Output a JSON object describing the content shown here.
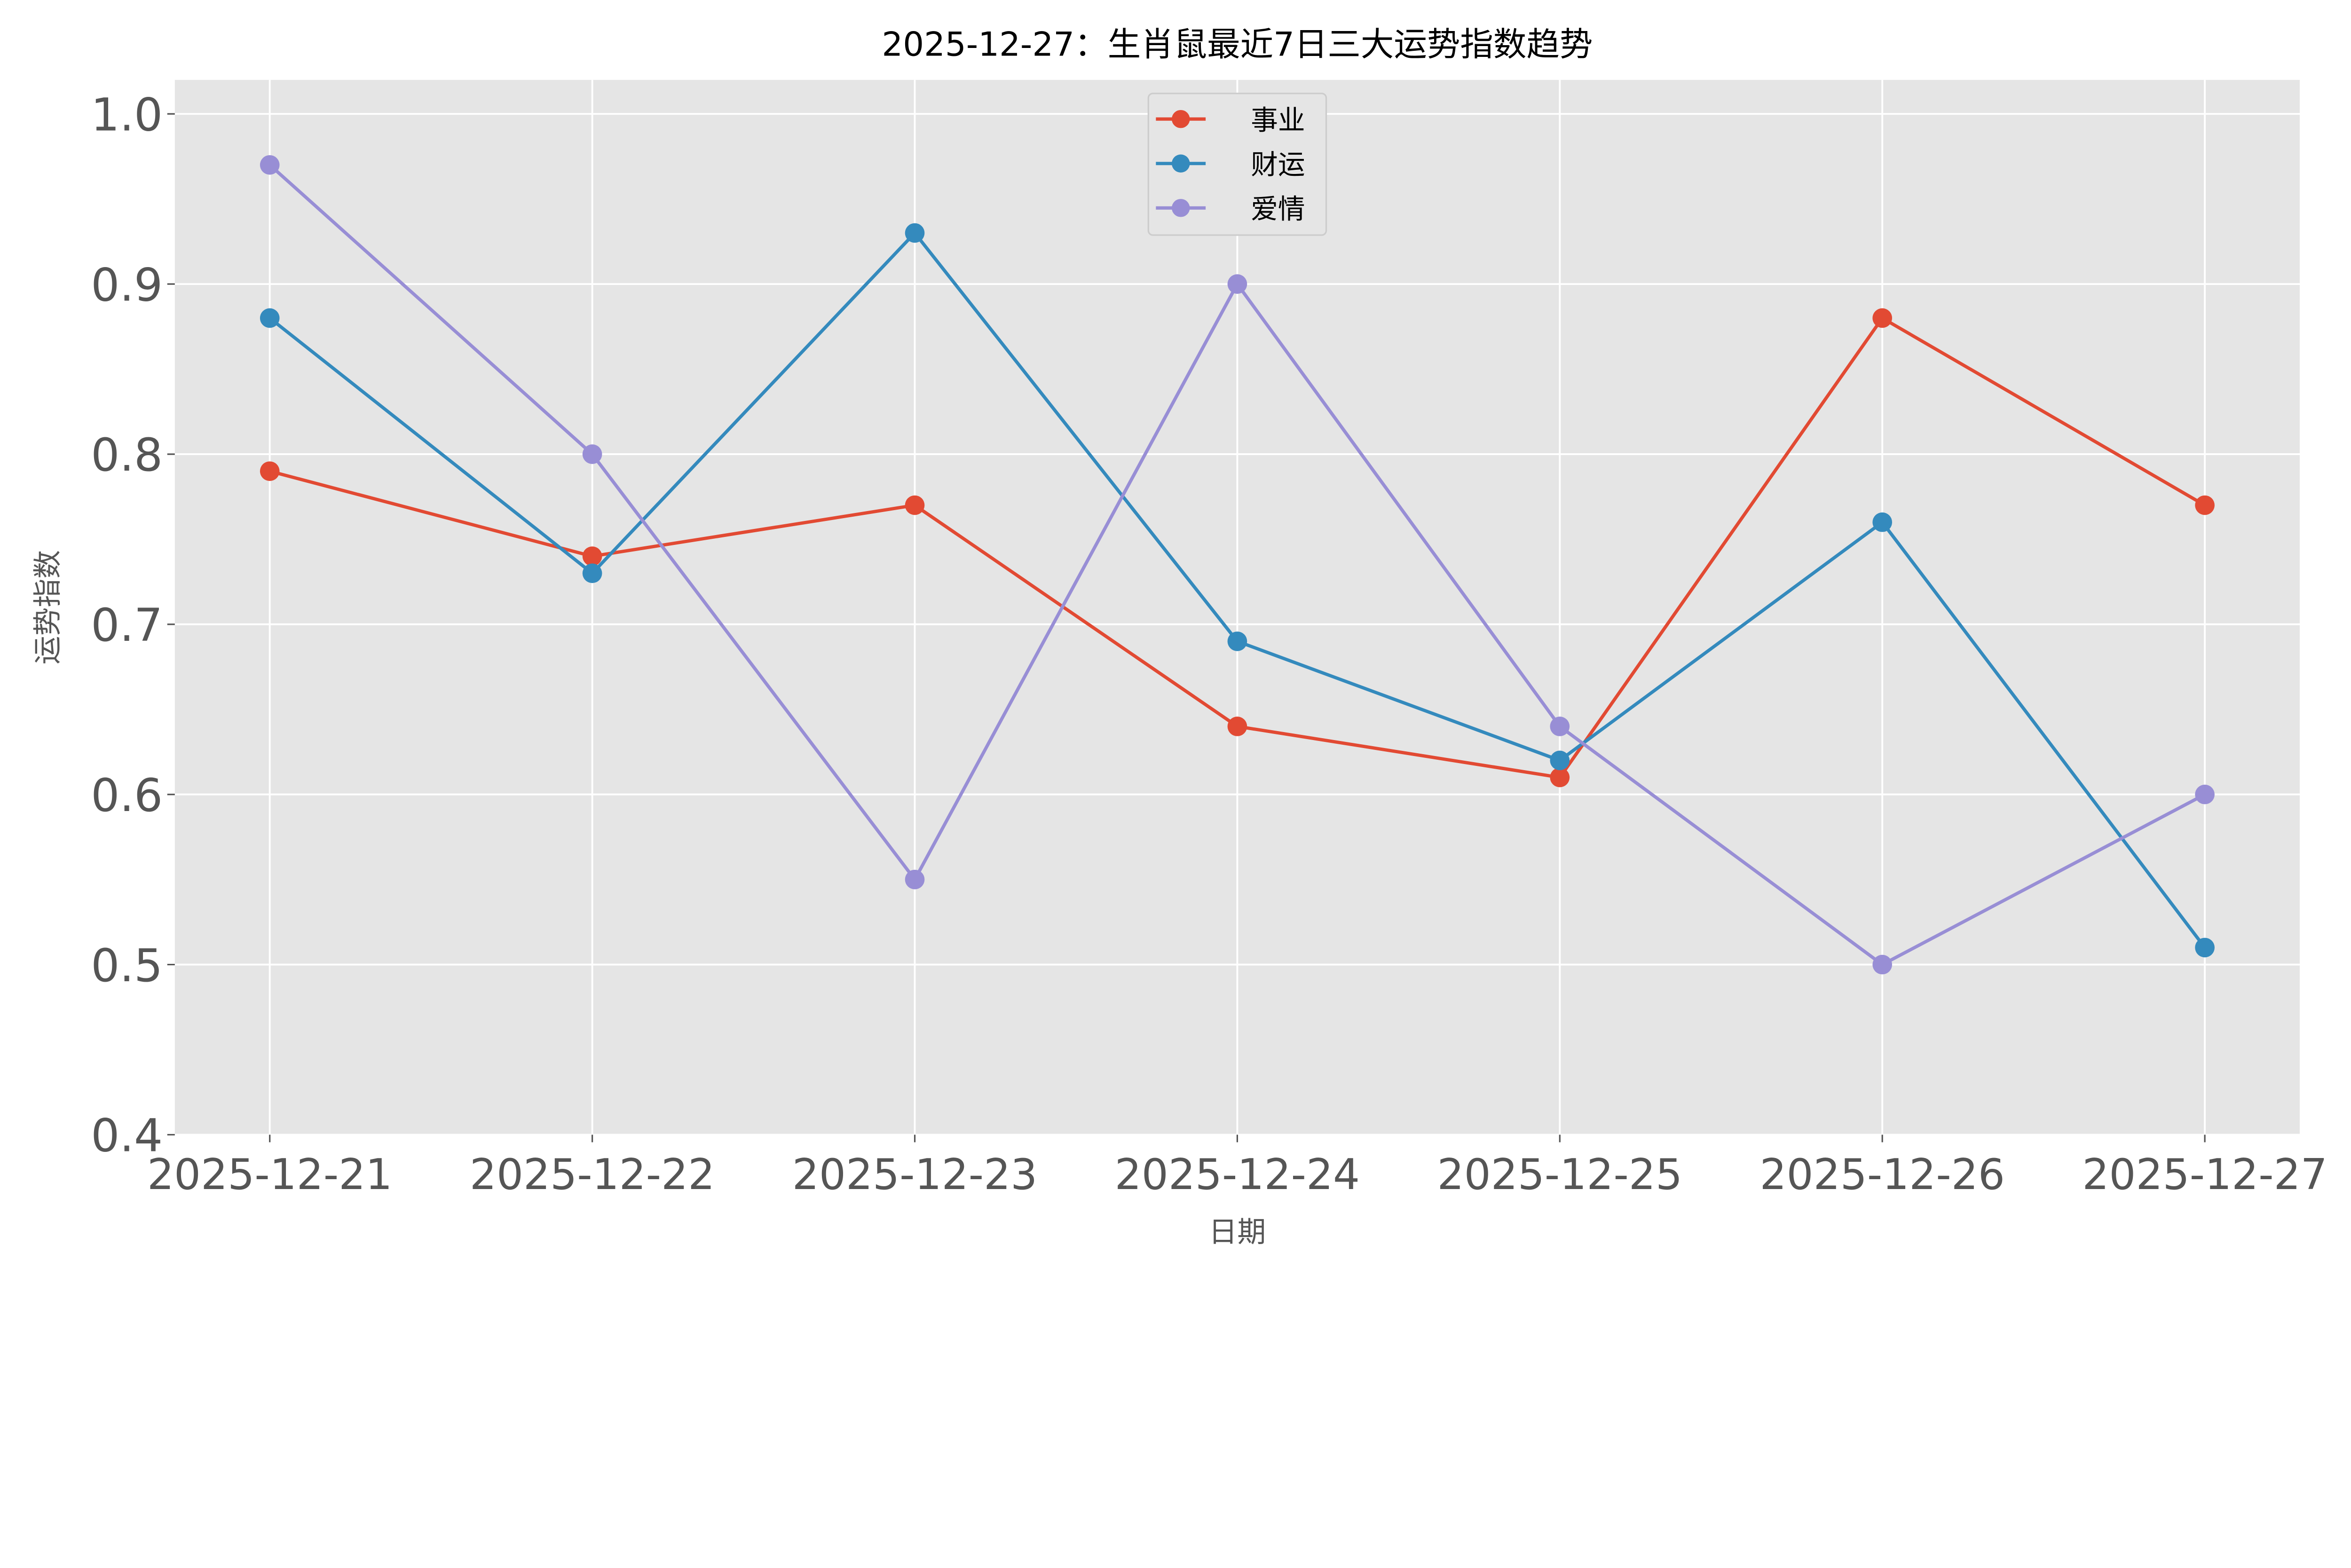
{
  "chart_data": {
    "type": "line",
    "title": "2025-12-27：生肖鼠最近7日三大运势指数趋势",
    "xlabel": "日期",
    "ylabel": "运势指数",
    "categories": [
      "2025-12-21",
      "2025-12-22",
      "2025-12-23",
      "2025-12-24",
      "2025-12-25",
      "2025-12-26",
      "2025-12-27"
    ],
    "ylim": [
      0.4,
      1.02
    ],
    "yticks": [
      "0.4",
      "0.5",
      "0.6",
      "0.7",
      "0.8",
      "0.9",
      "1.0"
    ],
    "grid": true,
    "legend_placement": "upper-center",
    "series": [
      {
        "name": "事业",
        "color": "#E24A33",
        "values": [
          0.79,
          0.74,
          0.77,
          0.64,
          0.61,
          0.88,
          0.77
        ]
      },
      {
        "name": "财运",
        "color": "#348ABD",
        "values": [
          0.88,
          0.73,
          0.93,
          0.69,
          0.62,
          0.76,
          0.51
        ]
      },
      {
        "name": "爱情",
        "color": "#988ED5",
        "values": [
          0.97,
          0.8,
          0.55,
          0.9,
          0.64,
          0.5,
          0.6
        ]
      }
    ]
  }
}
